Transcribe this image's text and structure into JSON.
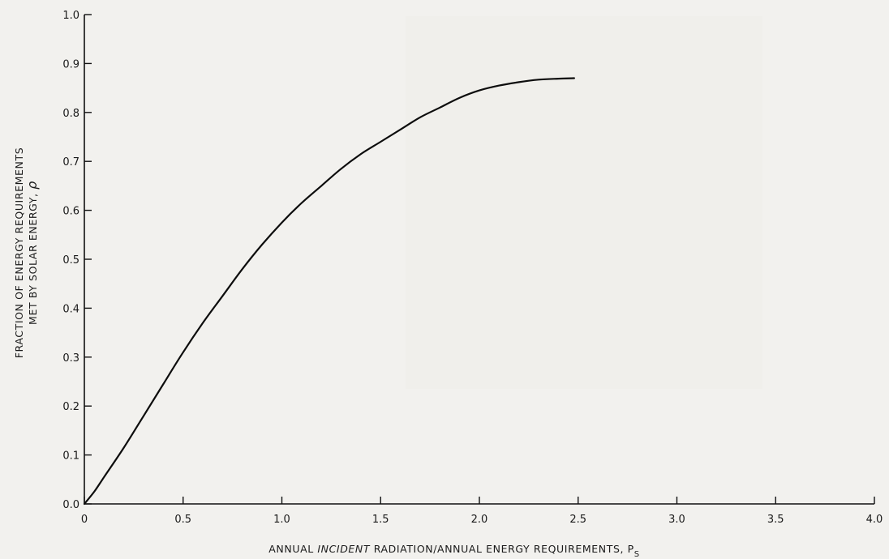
{
  "chart_data": {
    "type": "line",
    "xlabel_parts": [
      "ANNUAL ",
      "INCIDENT",
      " RADIATION/ANNUAL ENERGY REQUIREMENTS, P",
      "S"
    ],
    "ylabel_line1": "FRACTION OF ENERGY REQUIREMENTS",
    "ylabel_line2": "MET BY SOLAR ENERGY, ",
    "ylabel_symbol": "ρ",
    "xlim": [
      0,
      4.0
    ],
    "ylim": [
      0,
      1.0
    ],
    "x_ticks": [
      "0",
      "0.5",
      "1.0",
      "1.5",
      "2.0",
      "2.5",
      "3.0",
      "3.5",
      "4.0"
    ],
    "y_ticks": [
      "0.0",
      "0.1",
      "0.2",
      "0.3",
      "0.4",
      "0.5",
      "0.6",
      "0.7",
      "0.8",
      "0.9",
      "1.0"
    ],
    "series": [
      {
        "x": [
          0,
          0.05,
          0.1,
          0.2,
          0.3,
          0.4,
          0.5,
          0.6,
          0.7,
          0.8,
          0.9,
          1.0,
          1.1,
          1.2,
          1.3,
          1.4,
          1.5,
          1.6,
          1.7,
          1.8,
          1.9,
          2.0,
          2.1,
          2.2,
          2.3,
          2.4,
          2.48
        ],
        "y": [
          0.0,
          0.025,
          0.055,
          0.115,
          0.18,
          0.245,
          0.31,
          0.37,
          0.425,
          0.48,
          0.53,
          0.575,
          0.615,
          0.65,
          0.685,
          0.715,
          0.74,
          0.765,
          0.79,
          0.81,
          0.83,
          0.845,
          0.855,
          0.862,
          0.867,
          0.869,
          0.87
        ]
      }
    ]
  }
}
